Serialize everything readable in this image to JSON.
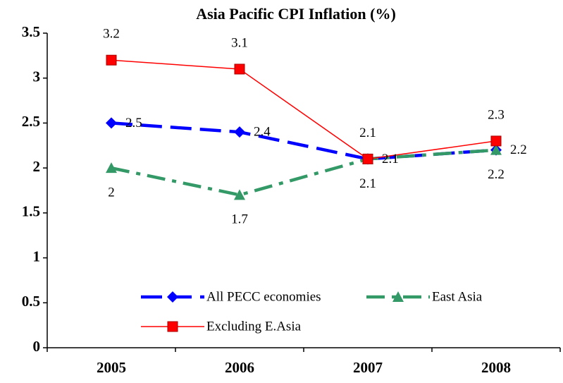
{
  "chart_data": {
    "type": "line",
    "title": "Asia Pacific CPI Inflation (%)",
    "categories": [
      "2005",
      "2006",
      "2007",
      "2008"
    ],
    "series": [
      {
        "name": "All PECC economies",
        "color": "#0000ff",
        "values": [
          2.5,
          2.4,
          2.1,
          2.2
        ]
      },
      {
        "name": "East Asia",
        "color": "#339966",
        "values": [
          2,
          1.7,
          2.1,
          2.2
        ]
      },
      {
        "name": "Excluding E.Asia",
        "color": "#ff0000",
        "values": [
          3.2,
          3.1,
          2.1,
          2.3
        ]
      }
    ],
    "ylim": [
      0,
      3.5
    ],
    "yticks": [
      0,
      0.5,
      1,
      1.5,
      2,
      2.5,
      3,
      3.5
    ],
    "grid": false,
    "legend": "bottom"
  }
}
